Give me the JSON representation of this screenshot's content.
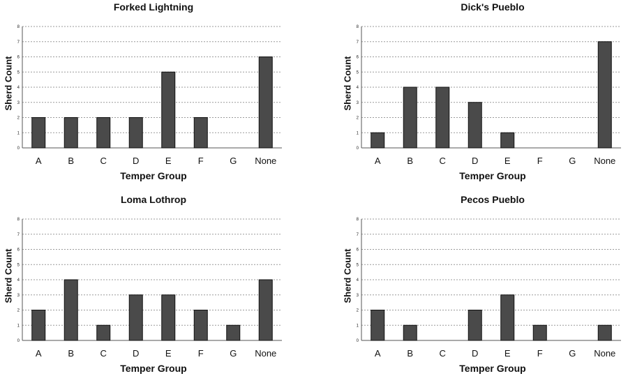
{
  "chart_data": [
    {
      "type": "bar",
      "title": "Forked Lightning",
      "xlabel": "Temper Group",
      "ylabel": "Sherd Count",
      "ylim": [
        0,
        8
      ],
      "yticks": [
        "0",
        "1",
        "2",
        "3",
        "4",
        "5",
        "6",
        "7",
        "8"
      ],
      "grid": true,
      "categories": [
        "A",
        "B",
        "C",
        "D",
        "E",
        "F",
        "G",
        "None"
      ],
      "values": [
        2,
        2,
        2,
        2,
        5,
        2,
        0,
        6
      ]
    },
    {
      "type": "bar",
      "title": "Dick's Pueblo",
      "xlabel": "Temper Group",
      "ylabel": "Sherd Count",
      "ylim": [
        0,
        8
      ],
      "yticks": [
        "0",
        "1",
        "2",
        "3",
        "4",
        "5",
        "6",
        "7",
        "8"
      ],
      "grid": true,
      "categories": [
        "A",
        "B",
        "C",
        "D",
        "E",
        "F",
        "G",
        "None"
      ],
      "values": [
        1,
        4,
        4,
        3,
        1,
        0,
        0,
        7
      ]
    },
    {
      "type": "bar",
      "title": "Loma Lothrop",
      "xlabel": "Temper Group",
      "ylabel": "Sherd Count",
      "ylim": [
        0,
        8
      ],
      "yticks": [
        "0",
        "1",
        "2",
        "3",
        "4",
        "5",
        "6",
        "7",
        "8"
      ],
      "grid": true,
      "categories": [
        "A",
        "B",
        "C",
        "D",
        "E",
        "F",
        "G",
        "None"
      ],
      "values": [
        2,
        4,
        1,
        3,
        3,
        2,
        1,
        4
      ]
    },
    {
      "type": "bar",
      "title": "Pecos Pueblo",
      "xlabel": "Temper Group",
      "ylabel": "Sherd Count",
      "ylim": [
        0,
        8
      ],
      "yticks": [
        "0",
        "1",
        "2",
        "3",
        "4",
        "5",
        "6",
        "7",
        "8"
      ],
      "grid": true,
      "categories": [
        "A",
        "B",
        "C",
        "D",
        "E",
        "F",
        "G",
        "None"
      ],
      "values": [
        2,
        1,
        0,
        2,
        3,
        1,
        0,
        1
      ]
    }
  ],
  "colors": {
    "bar_fill": "#4a4a4a",
    "bar_stroke": "#111111",
    "grid": "#9a9a9a",
    "axis": "#555555"
  }
}
